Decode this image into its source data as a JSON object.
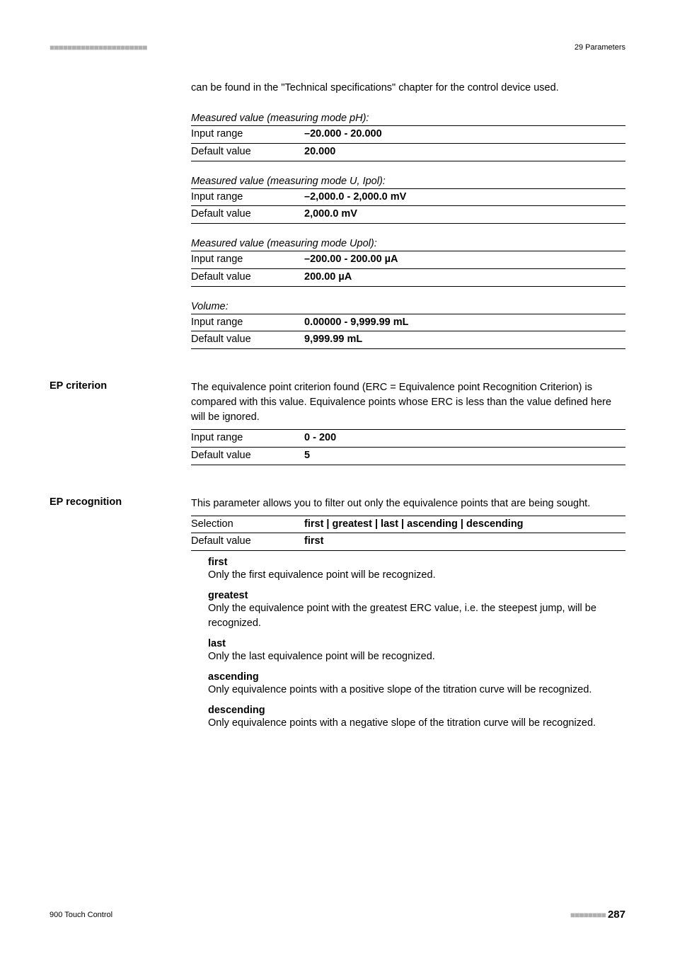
{
  "header": {
    "dots": "■■■■■■■■■■■■■■■■■■■■■■",
    "chapter": "29 Parameters"
  },
  "intro": "can be found in the \"Technical specifications\" chapter for the control device used.",
  "groups": [
    {
      "title": "Measured value (measuring mode pH):",
      "rows": [
        {
          "label": "Input range",
          "value": "–20.000 - 20.000"
        },
        {
          "label": "Default value",
          "value": "20.000"
        }
      ]
    },
    {
      "title": "Measured value (measuring mode U, Ipol):",
      "rows": [
        {
          "label": "Input range",
          "value": "–2,000.0 - 2,000.0 mV"
        },
        {
          "label": "Default value",
          "value": "2,000.0 mV"
        }
      ]
    },
    {
      "title": "Measured value (measuring mode Upol):",
      "rows": [
        {
          "label": "Input range",
          "value": "–200.00 - 200.00 µA"
        },
        {
          "label": "Default value",
          "value": "200.00 µA"
        }
      ]
    },
    {
      "title": "Volume:",
      "rows": [
        {
          "label": "Input range",
          "value": "0.00000 - 9,999.99 mL"
        },
        {
          "label": "Default value",
          "value": "9,999.99 mL"
        }
      ]
    }
  ],
  "ep_criterion": {
    "label": "EP criterion",
    "desc": "The equivalence point criterion found (ERC = Equivalence point Recognition Criterion) is compared with this value. Equivalence points whose ERC is less than the value defined here will be ignored.",
    "rows": [
      {
        "label": "Input range",
        "value": "0 - 200"
      },
      {
        "label": "Default value",
        "value": "5"
      }
    ]
  },
  "ep_recognition": {
    "label": "EP recognition",
    "desc": "This parameter allows you to filter out only the equivalence points that are being sought.",
    "rows": [
      {
        "label": "Selection",
        "value": "first | greatest | last | ascending | descending"
      },
      {
        "label": "Default value",
        "value": "first"
      }
    ],
    "options": [
      {
        "term": "first",
        "desc": "Only the first equivalence point will be recognized."
      },
      {
        "term": "greatest",
        "desc": "Only the equivalence point with the greatest ERC value, i.e. the steepest jump, will be recognized."
      },
      {
        "term": "last",
        "desc": "Only the last equivalence point will be recognized."
      },
      {
        "term": "ascending",
        "desc": "Only equivalence points with a positive slope of the titration curve will be recognized."
      },
      {
        "term": "descending",
        "desc": "Only equivalence points with a negative slope of the titration curve will be recognized."
      }
    ]
  },
  "footer": {
    "left": "900 Touch Control",
    "dots": "■■■■■■■■",
    "page": "287"
  }
}
